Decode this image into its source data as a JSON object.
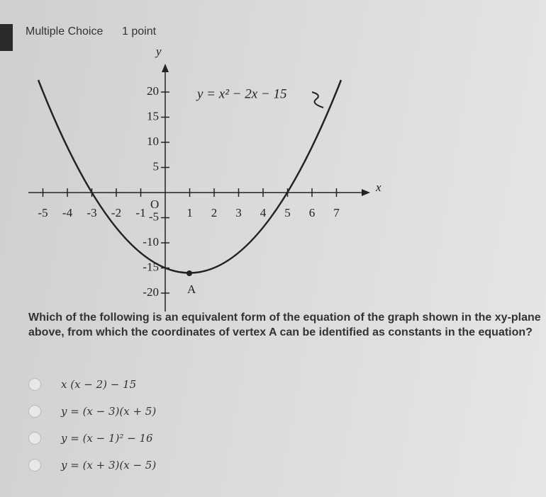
{
  "header": {
    "kind": "Multiple Choice",
    "points": "1 point"
  },
  "graph": {
    "equation": "y = x² − 2x − 15",
    "x_label": "x",
    "y_label": "y",
    "origin": "O",
    "vertex_label": "A",
    "xticks": [
      -5,
      -4,
      -3,
      -2,
      -1,
      1,
      2,
      3,
      4,
      5,
      6,
      7
    ],
    "yticks": [
      20,
      15,
      10,
      5,
      -5,
      -10,
      -15,
      -20
    ]
  },
  "question": "Which of the following is an equivalent form of the equation of the graph shown in the xy-plane above, from which the coordinates of vertex A can be identified as constants in the equation?",
  "options": [
    "x (x − 2) − 15",
    "y = (x − 3)(x + 5)",
    "y = (x − 1)² − 16",
    "y = (x + 3)(x − 5)"
  ]
}
